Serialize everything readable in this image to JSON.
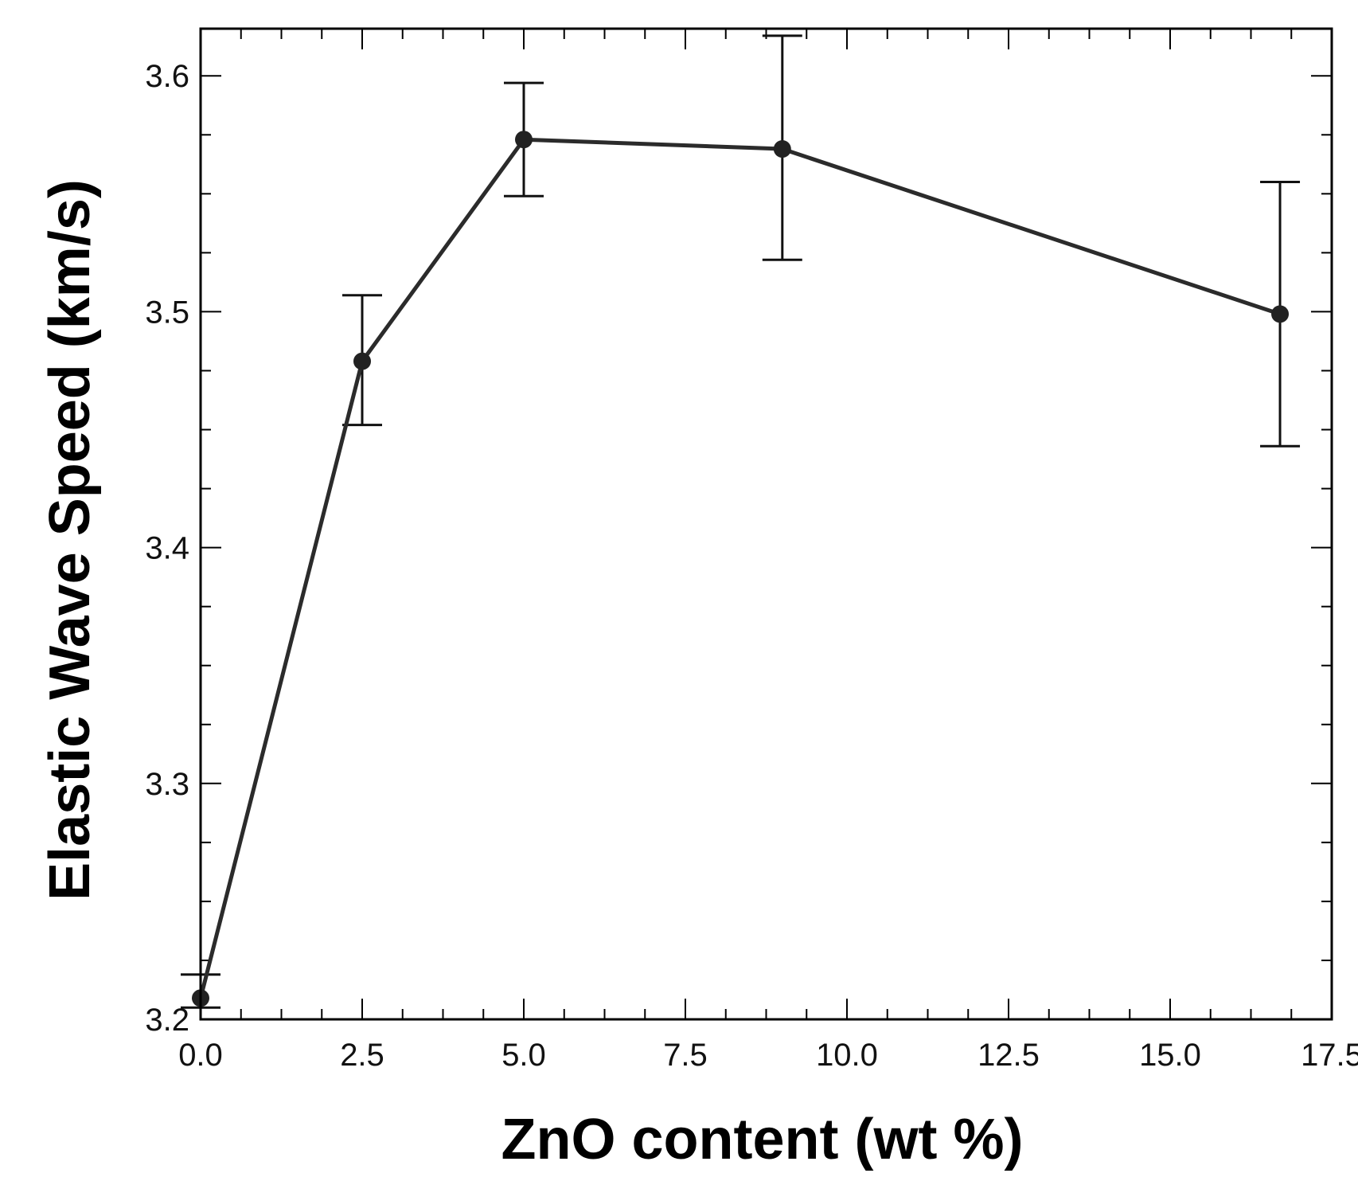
{
  "chart_data": {
    "type": "line",
    "title": "",
    "xlabel": "ZnO content (wt %)",
    "ylabel": "Elastic Wave Speed (km/s)",
    "xlim": [
      0,
      17.5
    ],
    "ylim": [
      3.2,
      3.62
    ],
    "xticks": [
      "0.0",
      "2.5",
      "5.0",
      "7.5",
      "10.0",
      "12.5",
      "15.0",
      "17.5"
    ],
    "yticks": [
      "3.2",
      "3.3",
      "3.4",
      "3.5",
      "3.6"
    ],
    "x_minor_step": 0.625,
    "y_minor_step": 0.025,
    "grid": false,
    "legend": "none",
    "series": [
      {
        "x": [
          0.0,
          2.5,
          5.0,
          9.0,
          16.7
        ],
        "y": [
          3.209,
          3.479,
          3.573,
          3.569,
          3.499
        ],
        "error_low": [
          3.205,
          3.452,
          3.549,
          3.522,
          3.443
        ],
        "error_high": [
          3.219,
          3.507,
          3.597,
          3.617,
          3.555
        ]
      }
    ],
    "colors": {
      "line": "#2b2b2b",
      "marker": "#222222",
      "axis": "#000000"
    }
  }
}
